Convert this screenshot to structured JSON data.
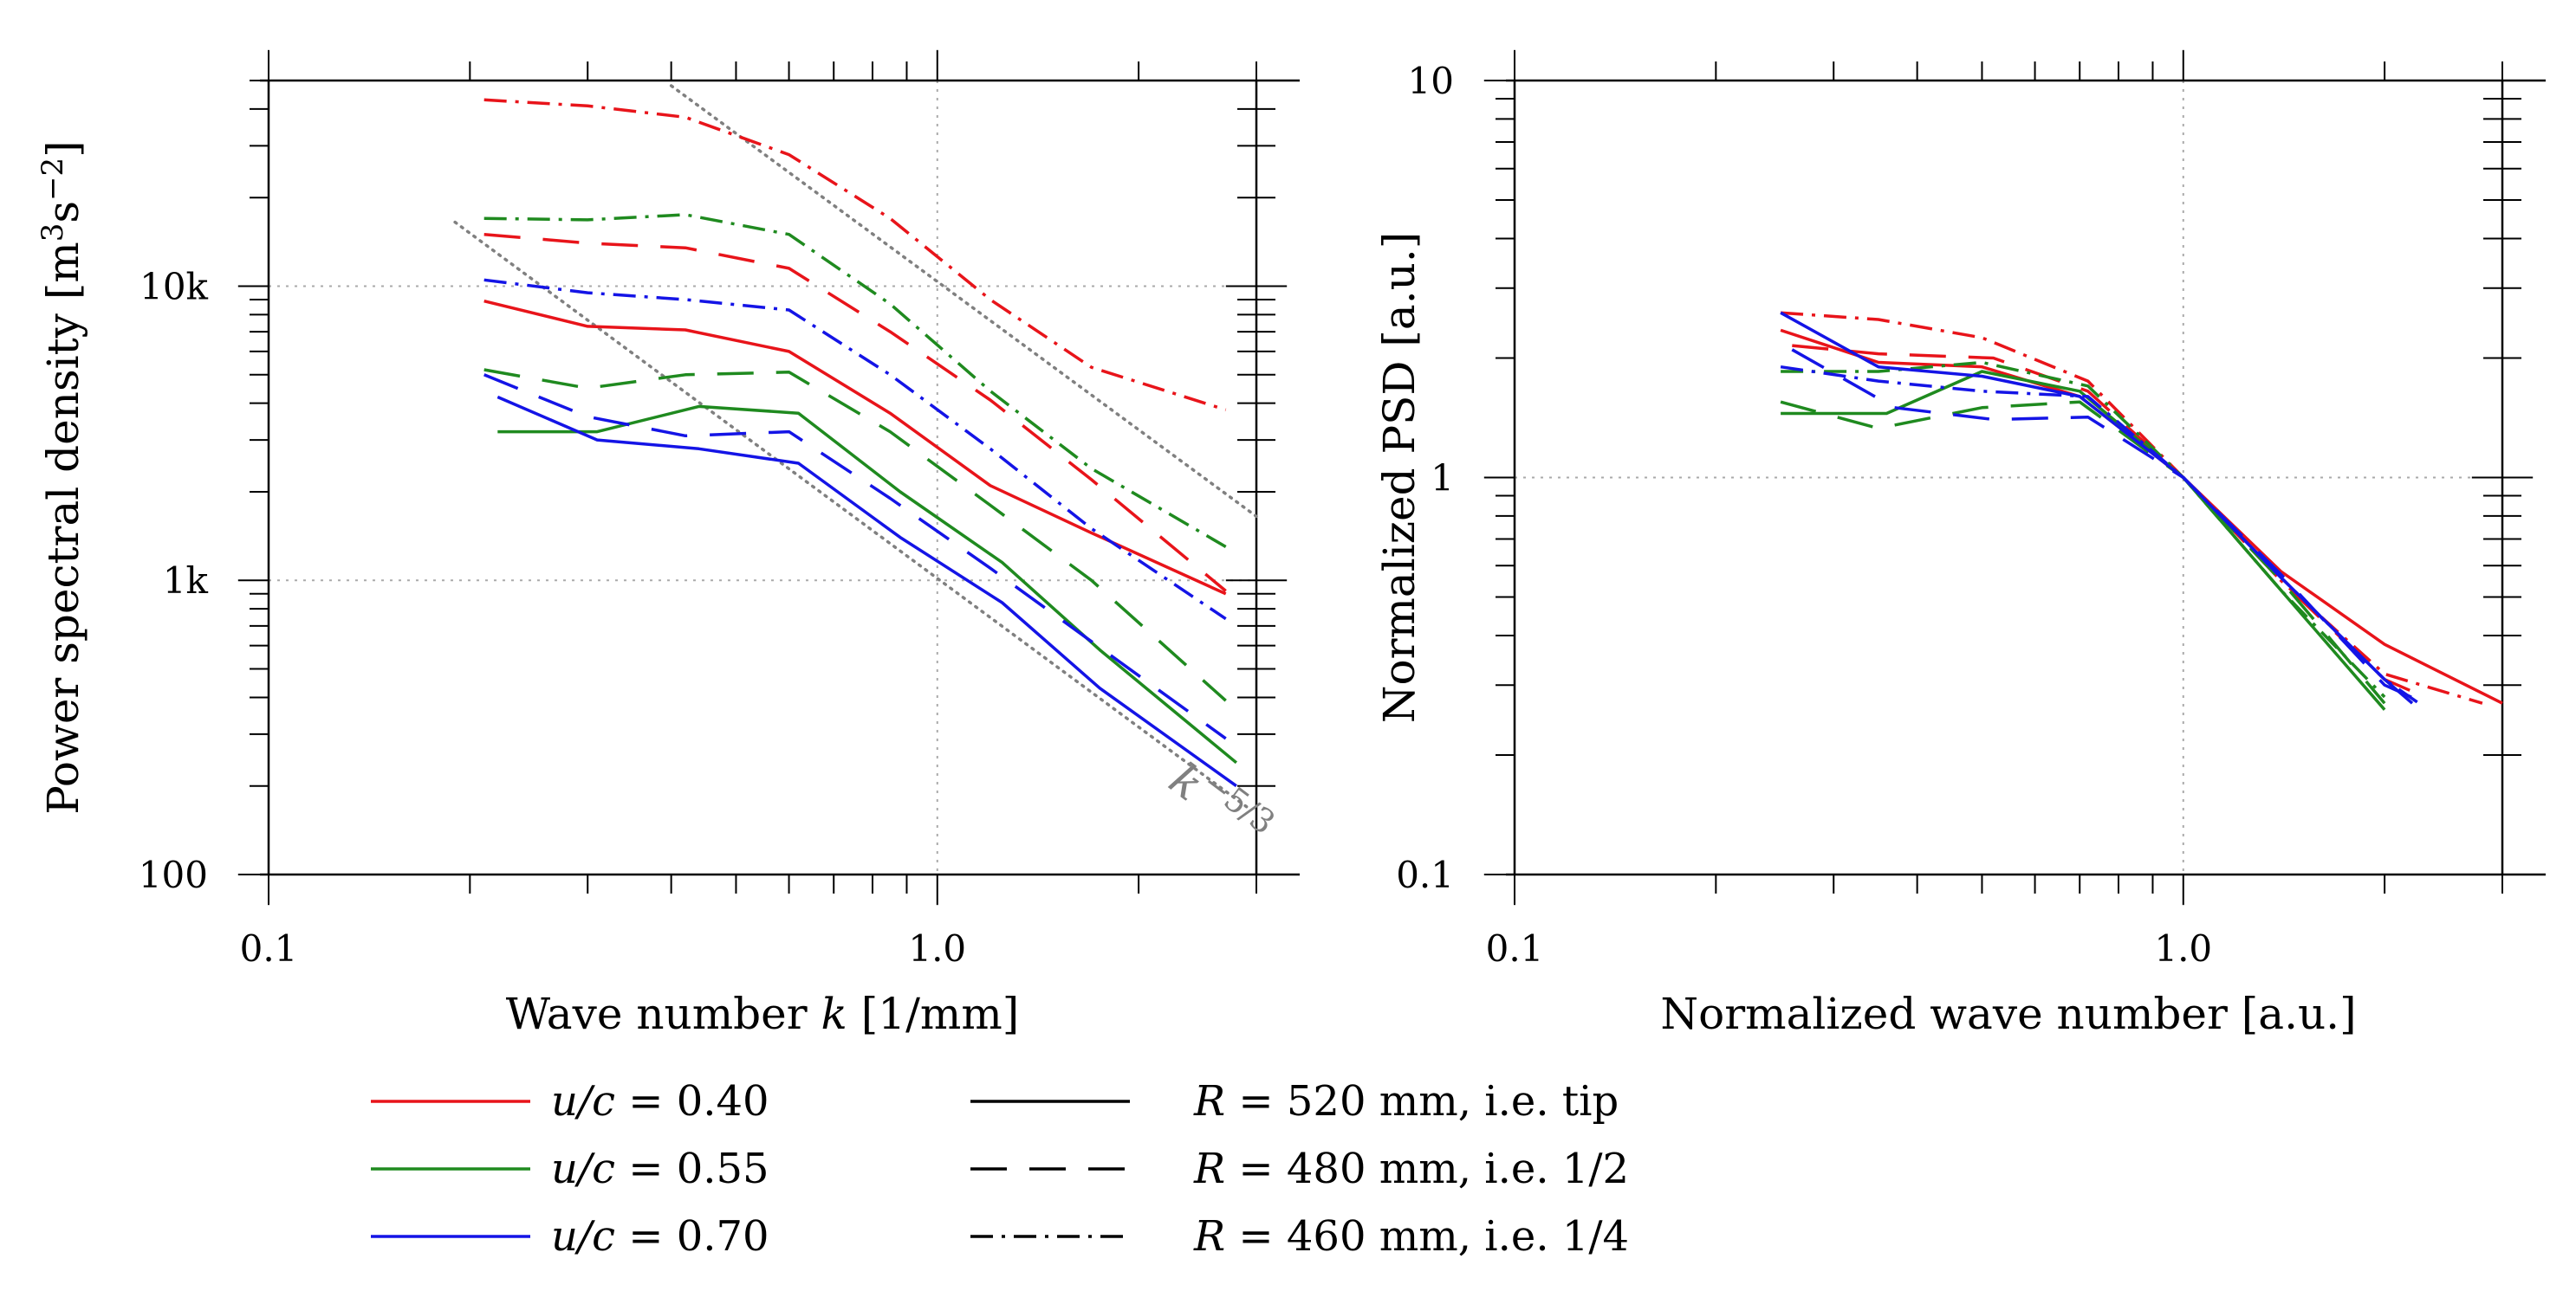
{
  "chart_data": [
    {
      "type": "line",
      "panel": "left",
      "xlabel_prefix": "Wave number ",
      "xlabel_var": "k",
      "xlabel_suffix": " [1/mm]",
      "ylabel_main": "Power spectral density [m",
      "ylabel_sup1": "3",
      "ylabel_mid": "s",
      "ylabel_sup2": "−2",
      "ylabel_end": "]",
      "xscale": "log",
      "yscale": "log",
      "xlim": [
        0.1,
        3.0
      ],
      "ylim": [
        100,
        50000
      ],
      "xticks": [
        {
          "value": 0.1,
          "label": "0.1"
        },
        {
          "value": 1.0,
          "label": "1.0"
        }
      ],
      "yticks": [
        {
          "value": 100,
          "label": "100"
        },
        {
          "value": 1000,
          "label": "1k"
        },
        {
          "value": 10000,
          "label": "10k"
        }
      ],
      "grid_x": [
        1.0
      ],
      "grid_y": [
        1000,
        10000
      ],
      "series": [
        {
          "name": "u/c = 0.40, R = 520 mm",
          "color": "red",
          "dash": "solid",
          "x": [
            0.21,
            0.3,
            0.42,
            0.6,
            0.85,
            1.2,
            1.7,
            2.7
          ],
          "y": [
            8900,
            7300,
            7100,
            6000,
            3700,
            2100,
            1450,
            900
          ]
        },
        {
          "name": "u/c = 0.40, R = 480 mm",
          "color": "red",
          "dash": "dashed",
          "x": [
            0.21,
            0.3,
            0.42,
            0.6,
            0.85,
            1.2,
            1.7,
            2.7
          ],
          "y": [
            15000,
            14000,
            13500,
            11500,
            7000,
            4100,
            2200,
            920
          ]
        },
        {
          "name": "u/c = 0.40, R = 460 mm",
          "color": "red",
          "dash": "dashdot",
          "x": [
            0.21,
            0.3,
            0.42,
            0.6,
            0.85,
            1.2,
            1.7,
            2.7
          ],
          "y": [
            43000,
            41000,
            37500,
            28000,
            17000,
            9000,
            5300,
            3800
          ]
        },
        {
          "name": "u/c = 0.55, R = 520 mm",
          "color": "green",
          "dash": "solid",
          "x": [
            0.22,
            0.31,
            0.44,
            0.62,
            0.88,
            1.25,
            1.75,
            2.8
          ],
          "y": [
            3200,
            3200,
            3900,
            3700,
            2000,
            1150,
            580,
            240
          ]
        },
        {
          "name": "u/c = 0.55, R = 480 mm",
          "color": "green",
          "dash": "dashed",
          "x": [
            0.21,
            0.3,
            0.42,
            0.6,
            0.85,
            1.2,
            1.7,
            2.7
          ],
          "y": [
            5200,
            4500,
            5000,
            5100,
            3200,
            1800,
            1000,
            390
          ]
        },
        {
          "name": "u/c = 0.55, R = 460 mm",
          "color": "green",
          "dash": "dashdot",
          "x": [
            0.21,
            0.3,
            0.42,
            0.6,
            0.85,
            1.2,
            1.7,
            2.7
          ],
          "y": [
            17000,
            16800,
            17500,
            15000,
            8700,
            4400,
            2400,
            1300
          ]
        },
        {
          "name": "u/c = 0.70, R = 520 mm",
          "color": "blue",
          "dash": "solid",
          "x": [
            0.22,
            0.31,
            0.44,
            0.62,
            0.88,
            1.25,
            1.75,
            2.8
          ],
          "y": [
            4200,
            3000,
            2800,
            2500,
            1400,
            840,
            430,
            200
          ]
        },
        {
          "name": "u/c = 0.70, R = 480 mm",
          "color": "blue",
          "dash": "dashed",
          "x": [
            0.21,
            0.3,
            0.42,
            0.6,
            0.85,
            1.2,
            1.7,
            2.7
          ],
          "y": [
            5000,
            3600,
            3100,
            3200,
            1900,
            1100,
            620,
            290
          ]
        },
        {
          "name": "u/c = 0.70, R = 460 mm",
          "color": "blue",
          "dash": "dashdot",
          "x": [
            0.21,
            0.3,
            0.42,
            0.6,
            0.85,
            1.2,
            1.7,
            2.7
          ],
          "y": [
            10500,
            9500,
            9000,
            8300,
            5000,
            2800,
            1500,
            740
          ]
        }
      ],
      "reference_lines": [
        {
          "x": [
            0.19,
            2.9
          ],
          "y": [
            16500,
            170
          ]
        },
        {
          "x": [
            0.4,
            3.0
          ],
          "y": [
            48000,
            1650
          ]
        }
      ],
      "annotation": {
        "base": "k",
        "exponent": "−5/3",
        "x": 2.2,
        "y": 200
      }
    },
    {
      "type": "line",
      "panel": "right",
      "xlabel": "Normalized wave number [a.u.]",
      "ylabel": "Normalized PSD [a.u.]",
      "xscale": "log",
      "yscale": "log",
      "xlim": [
        0.1,
        3.0
      ],
      "ylim": [
        0.1,
        10
      ],
      "xticks": [
        {
          "value": 0.1,
          "label": "0.1"
        },
        {
          "value": 1.0,
          "label": "1.0"
        }
      ],
      "yticks": [
        {
          "value": 0.1,
          "label": "0.1"
        },
        {
          "value": 1,
          "label": "1"
        },
        {
          "value": 10,
          "label": "10"
        }
      ],
      "grid_x": [
        1.0
      ],
      "grid_y": [
        1
      ],
      "series": [
        {
          "name": "u/c = 0.40, R = 520 mm",
          "color": "red",
          "dash": "solid",
          "x": [
            0.25,
            0.35,
            0.5,
            0.7,
            1.0,
            1.4,
            2.0,
            3.0
          ],
          "y": [
            2.35,
            1.95,
            1.9,
            1.6,
            1.0,
            0.58,
            0.38,
            0.27
          ]
        },
        {
          "name": "u/c = 0.40, R = 480 mm",
          "color": "red",
          "dash": "dashed",
          "x": [
            0.26,
            0.35,
            0.52,
            0.72,
            1.0,
            1.4,
            2.0,
            2.3
          ],
          "y": [
            2.15,
            2.05,
            2.0,
            1.65,
            1.0,
            0.55,
            0.31,
            0.28
          ]
        },
        {
          "name": "u/c = 0.40, R = 460 mm",
          "color": "red",
          "dash": "dashdot",
          "x": [
            0.25,
            0.35,
            0.5,
            0.72,
            1.0,
            1.4,
            2.0,
            2.8
          ],
          "y": [
            2.6,
            2.5,
            2.25,
            1.75,
            1.0,
            0.55,
            0.32,
            0.27
          ]
        },
        {
          "name": "u/c = 0.55, R = 520 mm",
          "color": "green",
          "dash": "solid",
          "x": [
            0.25,
            0.36,
            0.5,
            0.7,
            1.0,
            1.4,
            2.0
          ],
          "y": [
            1.45,
            1.45,
            1.85,
            1.65,
            1.0,
            0.52,
            0.26
          ]
        },
        {
          "name": "u/c = 0.55, R = 480 mm",
          "color": "green",
          "dash": "dashed",
          "x": [
            0.25,
            0.35,
            0.5,
            0.7,
            1.0,
            1.4,
            2.0
          ],
          "y": [
            1.55,
            1.33,
            1.5,
            1.55,
            1.0,
            0.55,
            0.27
          ]
        },
        {
          "name": "u/c = 0.55, R = 460 mm",
          "color": "green",
          "dash": "dashdot",
          "x": [
            0.25,
            0.35,
            0.5,
            0.72,
            1.0,
            1.4,
            2.0
          ],
          "y": [
            1.85,
            1.85,
            1.95,
            1.7,
            1.0,
            0.52,
            0.28
          ]
        },
        {
          "name": "u/c = 0.70, R = 520 mm",
          "color": "blue",
          "dash": "solid",
          "x": [
            0.25,
            0.35,
            0.5,
            0.7,
            1.0,
            1.4,
            2.0,
            2.2
          ],
          "y": [
            2.6,
            1.9,
            1.8,
            1.6,
            1.0,
            0.56,
            0.31,
            0.27
          ]
        },
        {
          "name": "u/c = 0.70, R = 480 mm",
          "color": "blue",
          "dash": "dashed",
          "x": [
            0.26,
            0.37,
            0.52,
            0.72,
            1.0,
            1.4,
            2.0,
            2.3
          ],
          "y": [
            2.1,
            1.5,
            1.4,
            1.42,
            1.0,
            0.57,
            0.3,
            0.27
          ]
        },
        {
          "name": "u/c = 0.70, R = 460 mm",
          "color": "blue",
          "dash": "dashdot",
          "x": [
            0.25,
            0.35,
            0.5,
            0.72,
            1.0,
            1.4,
            2.0,
            2.25
          ],
          "y": [
            1.9,
            1.75,
            1.65,
            1.6,
            1.0,
            0.56,
            0.31,
            0.27
          ]
        }
      ]
    }
  ],
  "legend": {
    "colors": [
      {
        "var": "u/c",
        "label": " = 0.40",
        "color": "red"
      },
      {
        "var": "u/c",
        "label": " = 0.55",
        "color": "green"
      },
      {
        "var": "u/c",
        "label": " = 0.70",
        "color": "blue"
      }
    ],
    "styles": [
      {
        "var": "R",
        "label": " = 520 mm, i.e. tip",
        "dash": "solid"
      },
      {
        "var": "R",
        "label": " = 480 mm, i.e. 1/2",
        "dash": "dashed"
      },
      {
        "var": "R",
        "label": " = 460 mm, i.e. 1/4",
        "dash": "dashdot"
      }
    ]
  },
  "colors": {
    "red": "#e8141a",
    "green": "#1f8a1f",
    "blue": "#1414e6",
    "grid": "#aaaaaa",
    "reference": "#808080"
  }
}
